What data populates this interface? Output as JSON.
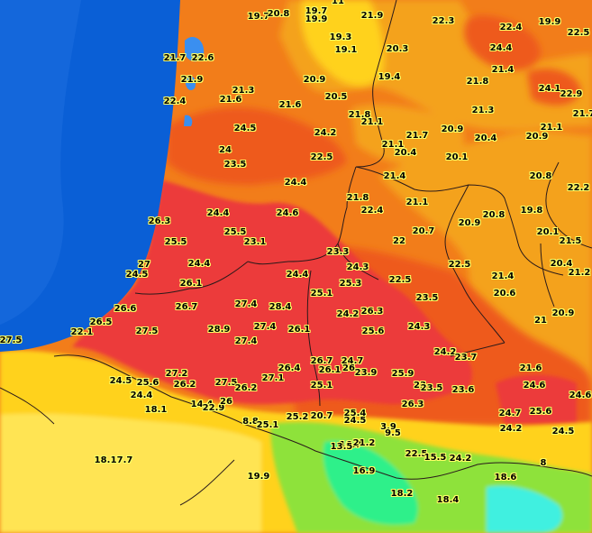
{
  "colors": {
    "ocean": "#0a5fd6",
    "ocean_light": "#3a8ff0",
    "orange_light": "#f4a21c",
    "orange": "#f27d1a",
    "orange_dark": "#ee5a1c",
    "red": "#ec3a3a",
    "yellow": "#ffd21a",
    "yellow_light": "#fff07a",
    "green": "#8ee23a",
    "green_light": "#2ef08a",
    "cyan": "#40f0e0",
    "border_line": "#2a1a1a"
  },
  "temperatures": [
    "19.7",
    "20.8",
    "19.7",
    "19.9",
    "21.9",
    "22.3",
    "22.4",
    "19.9",
    "22.5",
    "19.3",
    "19.1",
    "20.3",
    "24.4",
    "21.7",
    "22.6",
    "21.9",
    "19.4",
    "21.4",
    "20.9",
    "21.8",
    "24.1",
    "22.9",
    "21.3",
    "22.4",
    "21.6",
    "20.5",
    "21.6",
    "21.7",
    "21.3",
    "21.8",
    "24.5",
    "24.2",
    "21.1",
    "20.9",
    "21.1",
    "21.1",
    "20.4",
    "21.7",
    "20.9",
    "20.4",
    "24",
    "23.5",
    "22.5",
    "20.1",
    "20.8",
    "21.4",
    "22.2",
    "24.4",
    "21.8",
    "21.1",
    "26.3",
    "24.4",
    "24.6",
    "22.4",
    "20.9",
    "20.8",
    "19.8",
    "25.5",
    "25.5",
    "23.1",
    "20.7",
    "22",
    "20.1",
    "21.5",
    "23.3",
    "24.4",
    "24.3",
    "22.5",
    "21.4",
    "20.4",
    "27",
    "24.5",
    "24.4",
    "26.1",
    "25.3",
    "22.5",
    "20.6",
    "21.2",
    "25.1",
    "23.5",
    "26.6",
    "26.7",
    "27.4",
    "28.4",
    "26.3",
    "24.2",
    "21",
    "20.9",
    "26.5",
    "22.1",
    "27.5",
    "28.9",
    "27.4",
    "26.1",
    "25.6",
    "24.3",
    "27.5",
    "27.4",
    "24.2",
    "23.7",
    "26.7",
    "24.7",
    "21.6",
    "24.5",
    "27.2",
    "25.6",
    "26.2",
    "27.5",
    "26.4",
    "26.1",
    "26",
    "23.9",
    "25.9",
    "24.4",
    "26.2",
    "27.1",
    "25.1",
    "23",
    "23.5",
    "23.6",
    "24.6",
    "24.6",
    "18.1",
    "14.4",
    "22.9",
    "26",
    "26.3",
    "24.7",
    "25.6",
    "25.2",
    "20.7",
    "25.4",
    "24.5",
    "8.8",
    "25.1",
    "24.2",
    "24.5",
    "3.9",
    "9.5",
    "16.7",
    "21.2",
    "13.5",
    "18.1",
    "17.7",
    "22.5",
    "15.5",
    "24.2",
    "16.9",
    "19.9",
    "18.6",
    "8",
    "18.2",
    "18.4",
    "11"
  ]
}
